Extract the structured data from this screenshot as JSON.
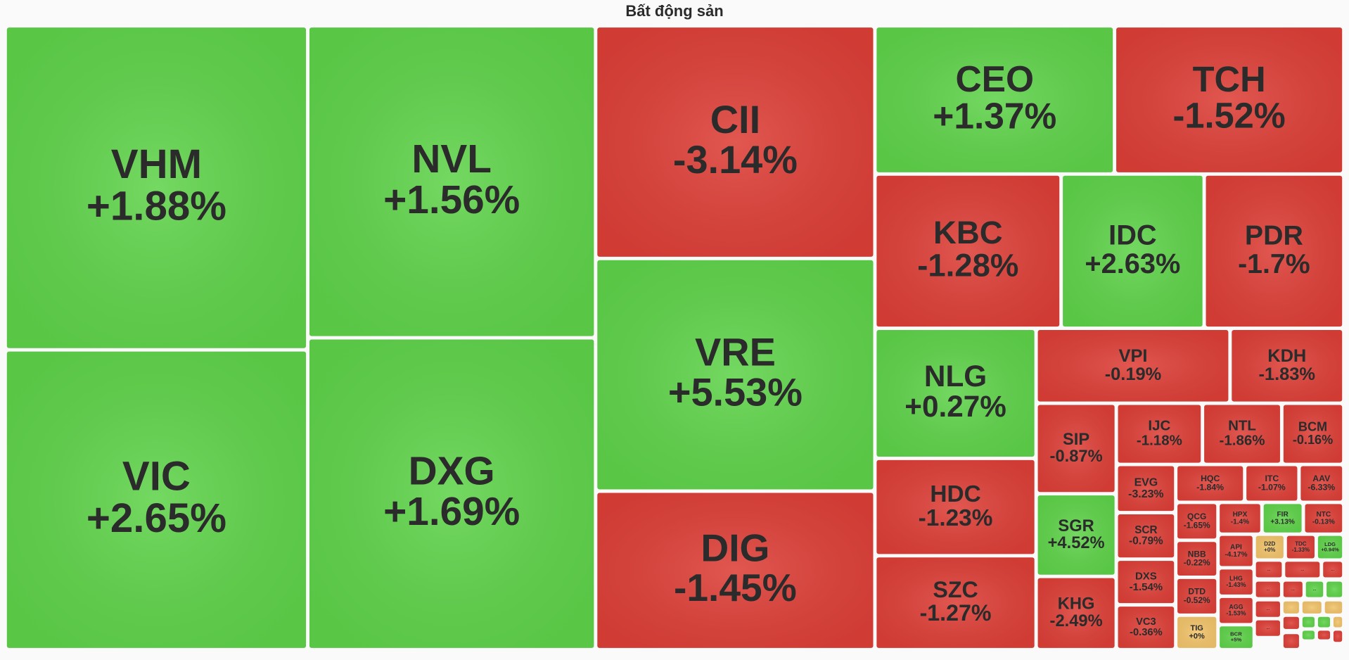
{
  "chart_data": {
    "type": "treemap",
    "title": "Bất động sản",
    "categories": [
      "VHM",
      "VIC",
      "NVL",
      "DXG",
      "CII",
      "VRE",
      "DIG",
      "CEO",
      "TCH",
      "KBC",
      "IDC",
      "PDR",
      "NLG",
      "HDC",
      "SZC",
      "VPI",
      "KDH",
      "SIP",
      "SGR",
      "KHG",
      "IJC",
      "NTL",
      "BCM",
      "EVG",
      "SCR",
      "DXS",
      "VC3",
      "HQC",
      "ITC",
      "AAV",
      "QCG",
      "HPX",
      "FIR",
      "NTC",
      "NBB",
      "API",
      "D2D",
      "TDC",
      "LDG",
      "DTD",
      "LHG",
      "AGG",
      "TIG",
      "BCR",
      "...",
      "...",
      "...",
      "...",
      "...",
      "...",
      "...",
      "...",
      null,
      null,
      null,
      null,
      null,
      null,
      null,
      null,
      null,
      null,
      null,
      null
    ],
    "values": [
      1.88,
      2.65,
      1.56,
      1.69,
      -3.14,
      5.53,
      -1.45,
      1.37,
      -1.52,
      -1.28,
      2.63,
      -1.7,
      0.27,
      -1.23,
      -1.27,
      -0.19,
      -1.83,
      -0.87,
      4.52,
      -2.49,
      -1.18,
      -1.86,
      -0.16,
      -3.23,
      -0.79,
      -1.54,
      -0.36,
      -1.84,
      -1.07,
      -6.33,
      -1.65,
      -1.4,
      3.13,
      -0.13,
      -0.22,
      -4.17,
      0,
      -1.33,
      0.94,
      -0.52,
      -1.43,
      -1.53,
      0,
      5,
      null,
      null,
      null,
      null,
      null,
      null,
      null,
      null,
      null,
      null,
      null,
      null,
      null,
      null,
      null,
      null,
      null,
      null,
      null,
      null
    ],
    "value_labels": [
      "+1.88%",
      "+2.65%",
      "+1.56%",
      "+1.69%",
      "-3.14%",
      "+5.53%",
      "-1.45%",
      "+1.37%",
      "-1.52%",
      "-1.28%",
      "+2.63%",
      "-1.7%",
      "+0.27%",
      "-1.23%",
      "-1.27%",
      "-0.19%",
      "-1.83%",
      "-0.87%",
      "+4.52%",
      "-2.49%",
      "-1.18%",
      "-1.86%",
      "-0.16%",
      "-3.23%",
      "-0.79%",
      "-1.54%",
      "-0.36%",
      "-1.84%",
      "-1.07%",
      "-6.33%",
      "-1.65%",
      "-1.4%",
      "+3.13%",
      "-0.13%",
      "-0.22%",
      "-4.17%",
      "+0%",
      "-1.33%",
      "+0.94%",
      "-0.52%",
      "-1.43%",
      "-1.53%",
      "+0%",
      "+5%",
      null,
      null,
      null,
      null,
      null,
      null,
      null,
      null,
      null,
      null,
      null,
      null,
      null,
      null,
      null,
      null,
      null,
      null,
      null,
      null
    ],
    "colors": [
      "#5fd34a",
      "#5fd34a",
      "#5fd34a",
      "#5fd34a",
      "#dd3f37",
      "#5fd34a",
      "#dd3f37",
      "#5fd34a",
      "#dd3f37",
      "#dd3f37",
      "#5fd34a",
      "#dd3f37",
      "#5fd34a",
      "#dd3f37",
      "#dd3f37",
      "#dd3f37",
      "#dd3f37",
      "#dd3f37",
      "#5fd34a",
      "#dd3f37",
      "#dd3f37",
      "#dd3f37",
      "#dd3f37",
      "#dd3f37",
      "#dd3f37",
      "#dd3f37",
      "#dd3f37",
      "#dd3f37",
      "#dd3f37",
      "#dd3f37",
      "#dd3f37",
      "#dd3f37",
      "#5fd34a",
      "#dd3f37",
      "#dd3f37",
      "#dd3f37",
      "#f2c46b",
      "#dd3f37",
      "#5fd34a",
      "#dd3f37",
      "#dd3f37",
      "#dd3f37",
      "#f2c46b",
      "#5fd34a",
      "#dd3f37",
      "#dd3f37",
      "#dd3f37",
      "#dd3f37",
      "#dd3f37",
      "#5fd34a",
      "#dd3f37",
      "#dd3f37",
      "#5fd34a",
      "#f2c46b",
      "#f2c46b",
      "#f2c46b",
      "#dd3f37",
      "#5fd34a",
      "#5fd34a",
      "#f2c46b",
      "#dd3f37",
      "#5fd34a",
      "#dd3f37",
      "#dd3f37"
    ]
  }
}
